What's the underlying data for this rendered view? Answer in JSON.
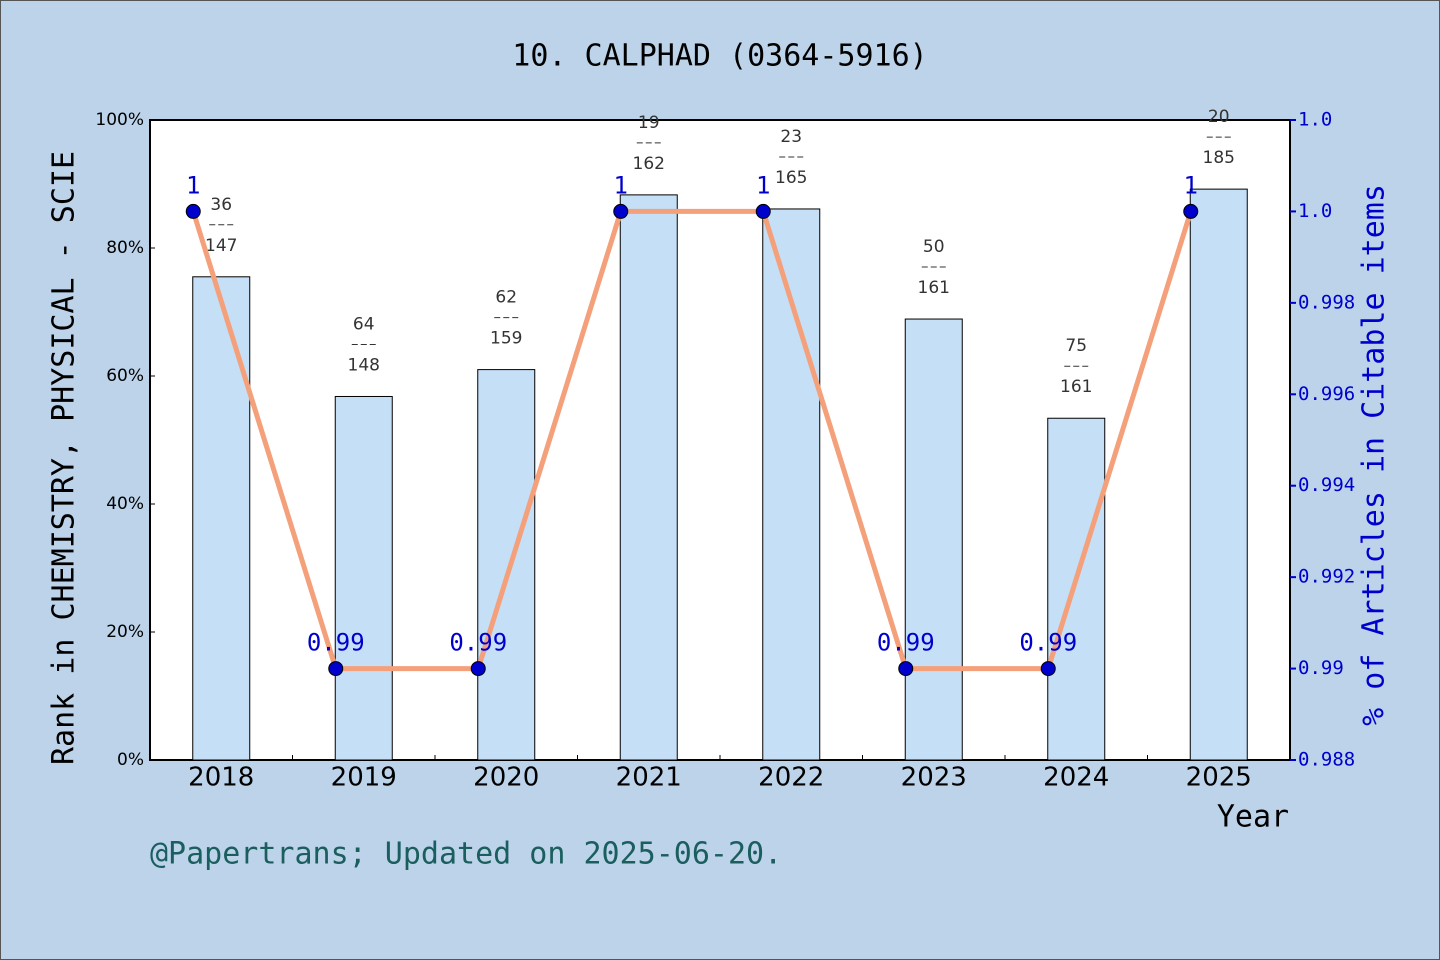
{
  "chart_data": {
    "type": "bar_line",
    "title": "10. CALPHAD (0364-5916)",
    "y_label": "Rank in CHEMISTRY, PHYSICAL - SCIE",
    "y2_label": "% of Articles in Citable items",
    "x_label": "Year",
    "footer": "@Papertrans; Updated on 2025-06-20.",
    "categories": [
      "2018",
      "2019",
      "2020",
      "2021",
      "2022",
      "2023",
      "2024",
      "2025"
    ],
    "series": [
      {
        "type": "bar",
        "color": "#c5dff7",
        "values": [
          75.5,
          56.8,
          61.0,
          88.3,
          86.1,
          68.9,
          53.4,
          89.2
        ],
        "ranks": [
          36,
          64,
          62,
          19,
          23,
          50,
          75,
          20
        ],
        "totals": [
          147,
          148,
          159,
          162,
          165,
          161,
          161,
          185
        ]
      },
      {
        "type": "line",
        "axis": "y2",
        "color": "#f4a07a",
        "marker_color": "#0000cc",
        "values": [
          1,
          0.99,
          0.99,
          1,
          1,
          0.99,
          0.99,
          1
        ]
      }
    ],
    "ylim": [
      0,
      100
    ],
    "yticks": [
      {
        "value": 0,
        "label": "0%"
      },
      {
        "value": 20,
        "label": "20%"
      },
      {
        "value": 40,
        "label": "40%"
      },
      {
        "value": 60,
        "label": "60%"
      },
      {
        "value": 80,
        "label": "80%"
      },
      {
        "value": 100,
        "label": "100%"
      }
    ],
    "y2lim": [
      0.988,
      1.002
    ],
    "y2ticks": [
      0.988,
      0.99,
      0.992,
      0.994,
      0.996,
      0.998,
      {
        "value": 1.0,
        "label": "1.0"
      },
      {
        "value": 1.002,
        "label": "1.0"
      }
    ]
  }
}
